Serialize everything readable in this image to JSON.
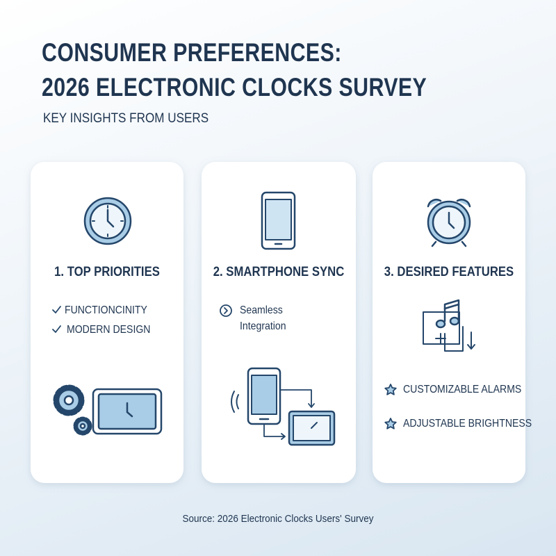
{
  "header": {
    "title_lines": [
      "CONSUMER PREFERENCES:",
      "2026 ELECTRONIC CLOCKS SURVEY"
    ],
    "subtitle": "KEY INSIGHTS FROM USERS"
  },
  "cards": [
    {
      "title": "1. TOP PRIORITIES",
      "items": [
        "FUNCTIONCINITY",
        "MODERN DESIGN"
      ]
    },
    {
      "title": "2. SMARTPHONE SYNC",
      "items": [
        "Seamless Integration"
      ]
    },
    {
      "title": "3. DESIRED FEATURES",
      "items": [
        "CUSTOMIZABLE ALARMS",
        "ADJUSTABLE BRIGHTNESS"
      ]
    }
  ],
  "footer": {
    "source": "Source: 2026 Electronic Clocks Users' Survey"
  }
}
